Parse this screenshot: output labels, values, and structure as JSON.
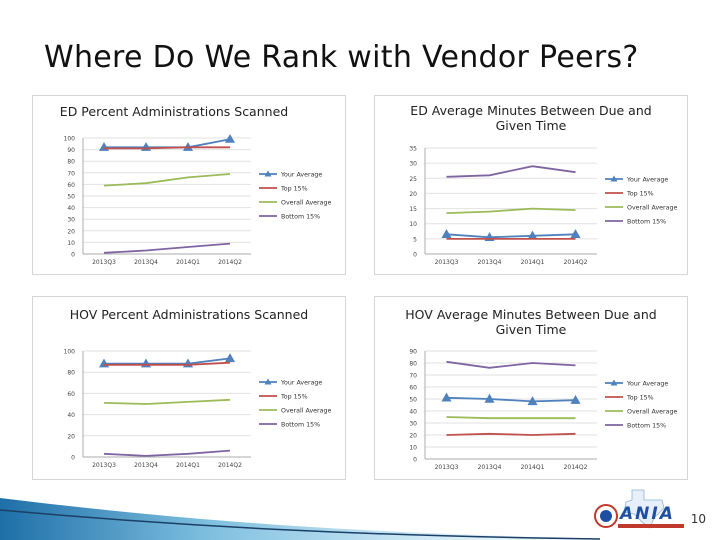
{
  "slide": {
    "title": "Where Do We Rank with Vendor Peers?",
    "page_number": "10",
    "logo_text": "ANIA"
  },
  "colors": {
    "your_average": "#4f81bd",
    "top_15": "#c0504d",
    "overall_average": "#9bbb59",
    "bottom_15": "#8064a2"
  },
  "chart_data": [
    {
      "type": "line",
      "title": "ED Percent Administrations Scanned",
      "categories": [
        "2013Q3",
        "2013Q4",
        "2014Q1",
        "2014Q2"
      ],
      "ylim": [
        0,
        100
      ],
      "yticks": [
        0,
        10,
        20,
        30,
        40,
        50,
        60,
        70,
        80,
        90,
        100
      ],
      "grid": true,
      "legend": "right",
      "series": [
        {
          "name": "Your Average",
          "values": [
            92,
            92,
            92,
            99
          ],
          "marker": "triangle"
        },
        {
          "name": "Top 15%",
          "values": [
            91,
            91,
            92,
            92
          ]
        },
        {
          "name": "Overall Average",
          "values": [
            59,
            61,
            66,
            69
          ]
        },
        {
          "name": "Bottom 15%",
          "values": [
            1,
            3,
            6,
            9
          ]
        }
      ]
    },
    {
      "type": "line",
      "title": "ED Average Minutes Between Due and Given Time",
      "categories": [
        "2013Q3",
        "2013Q4",
        "2014Q1",
        "2014Q2"
      ],
      "ylim": [
        0,
        35
      ],
      "yticks": [
        0,
        5,
        10,
        15,
        20,
        25,
        30,
        35
      ],
      "grid": true,
      "legend": "right",
      "series": [
        {
          "name": "Your Average",
          "values": [
            6.5,
            5.5,
            6,
            6.5
          ],
          "marker": "triangle"
        },
        {
          "name": "Top 15%",
          "values": [
            5,
            5,
            5,
            5
          ]
        },
        {
          "name": "Overall Average",
          "values": [
            13.5,
            14,
            15,
            14.5
          ]
        },
        {
          "name": "Bottom 15%",
          "values": [
            25.5,
            26,
            29,
            27
          ]
        }
      ]
    },
    {
      "type": "line",
      "title": "HOV Percent Administrations Scanned",
      "categories": [
        "2013Q3",
        "2013Q4",
        "2014Q1",
        "2014Q2"
      ],
      "ylim": [
        0,
        100
      ],
      "yticks": [
        0,
        20,
        40,
        60,
        80,
        100
      ],
      "grid": true,
      "legend": "right",
      "series": [
        {
          "name": "Your Average",
          "values": [
            88,
            88,
            88,
            93
          ],
          "marker": "triangle"
        },
        {
          "name": "Top 15%",
          "values": [
            87,
            87,
            87,
            89
          ]
        },
        {
          "name": "Overall Average",
          "values": [
            51,
            50,
            52,
            54
          ]
        },
        {
          "name": "Bottom 15%",
          "values": [
            3,
            1,
            3,
            6
          ]
        }
      ]
    },
    {
      "type": "line",
      "title": "HOV Average Minutes Between Due and Given Time",
      "categories": [
        "2013Q3",
        "2013Q4",
        "2014Q1",
        "2014Q2"
      ],
      "ylim": [
        0,
        90
      ],
      "yticks": [
        0,
        10,
        20,
        30,
        40,
        50,
        60,
        70,
        80,
        90
      ],
      "grid": true,
      "legend": "right",
      "series": [
        {
          "name": "Your Average",
          "values": [
            51,
            50,
            48,
            49
          ],
          "marker": "triangle"
        },
        {
          "name": "Top 15%",
          "values": [
            20,
            21,
            20,
            21
          ]
        },
        {
          "name": "Overall Average",
          "values": [
            35,
            34,
            34,
            34
          ]
        },
        {
          "name": "Bottom 15%",
          "values": [
            81,
            76,
            80,
            78
          ]
        }
      ]
    }
  ]
}
